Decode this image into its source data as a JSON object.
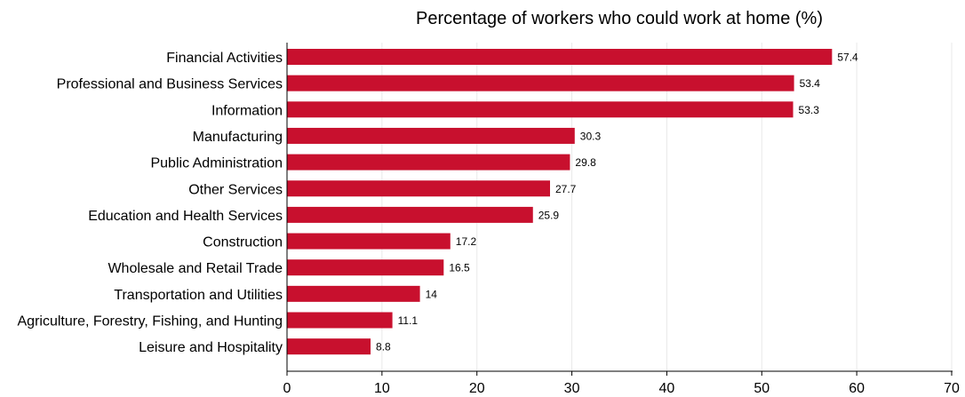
{
  "chart_data": {
    "type": "bar",
    "orientation": "horizontal",
    "title": "Percentage of workers who could work at home (%)",
    "xlabel": "",
    "ylabel": "",
    "categories": [
      "Financial Activities",
      "Professional and Business Services",
      "Information",
      "Manufacturing",
      "Public Administration",
      "Other Services",
      "Education and Health Services",
      "Construction",
      "Wholesale and Retail Trade",
      "Transportation and Utilities",
      "Agriculture, Forestry, Fishing, and Hunting",
      "Leisure and Hospitality"
    ],
    "values": [
      57.4,
      53.4,
      53.3,
      30.3,
      29.8,
      27.7,
      25.9,
      17.2,
      16.5,
      14,
      11.1,
      8.8
    ],
    "value_labels": [
      "57.4",
      "53.4",
      "53.3",
      "30.3",
      "29.8",
      "27.7",
      "25.9",
      "17.2",
      "16.5",
      "14",
      "11.1",
      "8.8"
    ],
    "xlim": [
      0,
      70
    ],
    "xticks": [
      0,
      10,
      20,
      30,
      40,
      50,
      60,
      70
    ],
    "grid": true,
    "legend": "none",
    "bar_color": "#c8102e"
  }
}
